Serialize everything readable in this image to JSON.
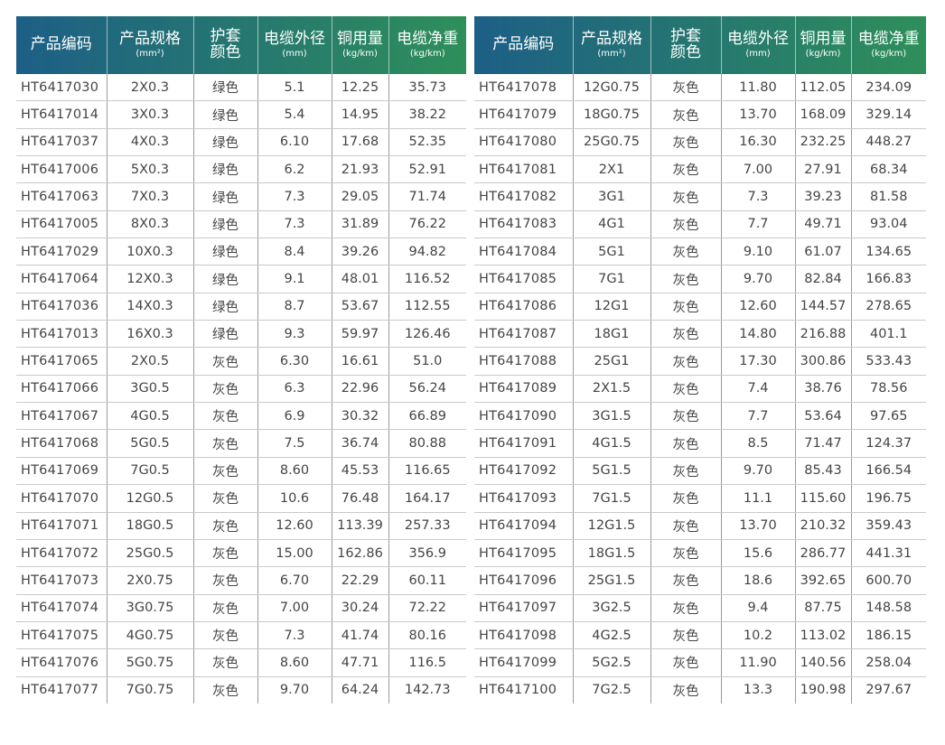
{
  "colors": {
    "header_gradient_start": "#1d5f86",
    "header_gradient_end": "#2e8f5a",
    "text": "#444444",
    "row_divider": "#c9c9c9",
    "col_divider": "#9a9a9a"
  },
  "headers": {
    "code": "产品编码",
    "spec": "产品规格",
    "spec_unit": "(mm²)",
    "color_line1": "护套",
    "color_line2": "颜色",
    "diameter": "电缆外径",
    "diameter_unit": "(mm)",
    "copper": "铜用量",
    "copper_unit": "(kg/km)",
    "weight": "电缆净重",
    "weight_unit": "(kg/km)"
  },
  "left_rows": [
    {
      "code": "HT6417030",
      "spec": "2X0.3",
      "color": "绿色",
      "od": "5.1",
      "cu": "12.25",
      "wt": "35.73"
    },
    {
      "code": "HT6417014",
      "spec": "3X0.3",
      "color": "绿色",
      "od": "5.4",
      "cu": "14.95",
      "wt": "38.22"
    },
    {
      "code": "HT6417037",
      "spec": "4X0.3",
      "color": "绿色",
      "od": "6.10",
      "cu": "17.68",
      "wt": "52.35"
    },
    {
      "code": "HT6417006",
      "spec": "5X0.3",
      "color": "绿色",
      "od": "6.2",
      "cu": "21.93",
      "wt": "52.91"
    },
    {
      "code": "HT6417063",
      "spec": "7X0.3",
      "color": "绿色",
      "od": "7.3",
      "cu": "29.05",
      "wt": "71.74"
    },
    {
      "code": "HT6417005",
      "spec": "8X0.3",
      "color": "绿色",
      "od": "7.3",
      "cu": "31.89",
      "wt": "76.22"
    },
    {
      "code": "HT6417029",
      "spec": "10X0.3",
      "color": "绿色",
      "od": "8.4",
      "cu": "39.26",
      "wt": "94.82"
    },
    {
      "code": "HT6417064",
      "spec": "12X0.3",
      "color": "绿色",
      "od": "9.1",
      "cu": "48.01",
      "wt": "116.52"
    },
    {
      "code": "HT6417036",
      "spec": "14X0.3",
      "color": "绿色",
      "od": "8.7",
      "cu": "53.67",
      "wt": "112.55"
    },
    {
      "code": "HT6417013",
      "spec": "16X0.3",
      "color": "绿色",
      "od": "9.3",
      "cu": "59.97",
      "wt": "126.46"
    },
    {
      "code": "HT6417065",
      "spec": "2X0.5",
      "color": "灰色",
      "od": "6.30",
      "cu": "16.61",
      "wt": "51.0"
    },
    {
      "code": "HT6417066",
      "spec": "3G0.5",
      "color": "灰色",
      "od": "6.3",
      "cu": "22.96",
      "wt": "56.24"
    },
    {
      "code": "HT6417067",
      "spec": "4G0.5",
      "color": "灰色",
      "od": "6.9",
      "cu": "30.32",
      "wt": "66.89"
    },
    {
      "code": "HT6417068",
      "spec": "5G0.5",
      "color": "灰色",
      "od": "7.5",
      "cu": "36.74",
      "wt": "80.88"
    },
    {
      "code": "HT6417069",
      "spec": "7G0.5",
      "color": "灰色",
      "od": "8.60",
      "cu": "45.53",
      "wt": "116.65"
    },
    {
      "code": "HT6417070",
      "spec": "12G0.5",
      "color": "灰色",
      "od": "10.6",
      "cu": "76.48",
      "wt": "164.17"
    },
    {
      "code": "HT6417071",
      "spec": "18G0.5",
      "color": "灰色",
      "od": "12.60",
      "cu": "113.39",
      "wt": "257.33"
    },
    {
      "code": "HT6417072",
      "spec": "25G0.5",
      "color": "灰色",
      "od": "15.00",
      "cu": "162.86",
      "wt": "356.9"
    },
    {
      "code": "HT6417073",
      "spec": "2X0.75",
      "color": "灰色",
      "od": "6.70",
      "cu": "22.29",
      "wt": "60.11"
    },
    {
      "code": "HT6417074",
      "spec": "3G0.75",
      "color": "灰色",
      "od": "7.00",
      "cu": "30.24",
      "wt": "72.22"
    },
    {
      "code": "HT6417075",
      "spec": "4G0.75",
      "color": "灰色",
      "od": "7.3",
      "cu": "41.74",
      "wt": "80.16"
    },
    {
      "code": "HT6417076",
      "spec": "5G0.75",
      "color": "灰色",
      "od": "8.60",
      "cu": "47.71",
      "wt": "116.5"
    },
    {
      "code": "HT6417077",
      "spec": "7G0.75",
      "color": "灰色",
      "od": "9.70",
      "cu": "64.24",
      "wt": "142.73"
    }
  ],
  "right_rows": [
    {
      "code": "HT6417078",
      "spec": "12G0.75",
      "color": "灰色",
      "od": "11.80",
      "cu": "112.05",
      "wt": "234.09"
    },
    {
      "code": "HT6417079",
      "spec": "18G0.75",
      "color": "灰色",
      "od": "13.70",
      "cu": "168.09",
      "wt": "329.14"
    },
    {
      "code": "HT6417080",
      "spec": "25G0.75",
      "color": "灰色",
      "od": "16.30",
      "cu": "232.25",
      "wt": "448.27"
    },
    {
      "code": "HT6417081",
      "spec": "2X1",
      "color": "灰色",
      "od": "7.00",
      "cu": "27.91",
      "wt": "68.34"
    },
    {
      "code": "HT6417082",
      "spec": "3G1",
      "color": "灰色",
      "od": "7.3",
      "cu": "39.23",
      "wt": "81.58"
    },
    {
      "code": "HT6417083",
      "spec": "4G1",
      "color": "灰色",
      "od": "7.7",
      "cu": "49.71",
      "wt": "93.04"
    },
    {
      "code": "HT6417084",
      "spec": "5G1",
      "color": "灰色",
      "od": "9.10",
      "cu": "61.07",
      "wt": "134.65"
    },
    {
      "code": "HT6417085",
      "spec": "7G1",
      "color": "灰色",
      "od": "9.70",
      "cu": "82.84",
      "wt": "166.83"
    },
    {
      "code": "HT6417086",
      "spec": "12G1",
      "color": "灰色",
      "od": "12.60",
      "cu": "144.57",
      "wt": "278.65"
    },
    {
      "code": "HT6417087",
      "spec": "18G1",
      "color": "灰色",
      "od": "14.80",
      "cu": "216.88",
      "wt": "401.1"
    },
    {
      "code": "HT6417088",
      "spec": "25G1",
      "color": "灰色",
      "od": "17.30",
      "cu": "300.86",
      "wt": "533.43"
    },
    {
      "code": "HT6417089",
      "spec": "2X1.5",
      "color": "灰色",
      "od": "7.4",
      "cu": "38.76",
      "wt": "78.56"
    },
    {
      "code": "HT6417090",
      "spec": "3G1.5",
      "color": "灰色",
      "od": "7.7",
      "cu": "53.64",
      "wt": "97.65"
    },
    {
      "code": "HT6417091",
      "spec": "4G1.5",
      "color": "灰色",
      "od": "8.5",
      "cu": "71.47",
      "wt": "124.37"
    },
    {
      "code": "HT6417092",
      "spec": "5G1.5",
      "color": "灰色",
      "od": "9.70",
      "cu": "85.43",
      "wt": "166.54"
    },
    {
      "code": "HT6417093",
      "spec": "7G1.5",
      "color": "灰色",
      "od": "11.1",
      "cu": "115.60",
      "wt": "196.75"
    },
    {
      "code": "HT6417094",
      "spec": "12G1.5",
      "color": "灰色",
      "od": "13.70",
      "cu": "210.32",
      "wt": "359.43"
    },
    {
      "code": "HT6417095",
      "spec": "18G1.5",
      "color": "灰色",
      "od": "15.6",
      "cu": "286.77",
      "wt": "441.31"
    },
    {
      "code": "HT6417096",
      "spec": "25G1.5",
      "color": "灰色",
      "od": "18.6",
      "cu": "392.65",
      "wt": "600.70"
    },
    {
      "code": "HT6417097",
      "spec": "3G2.5",
      "color": "灰色",
      "od": "9.4",
      "cu": "87.75",
      "wt": "148.58"
    },
    {
      "code": "HT6417098",
      "spec": "4G2.5",
      "color": "灰色",
      "od": "10.2",
      "cu": "113.02",
      "wt": "186.15"
    },
    {
      "code": "HT6417099",
      "spec": "5G2.5",
      "color": "灰色",
      "od": "11.90",
      "cu": "140.56",
      "wt": "258.04"
    },
    {
      "code": "HT6417100",
      "spec": "7G2.5",
      "color": "灰色",
      "od": "13.3",
      "cu": "190.98",
      "wt": "297.67"
    }
  ]
}
